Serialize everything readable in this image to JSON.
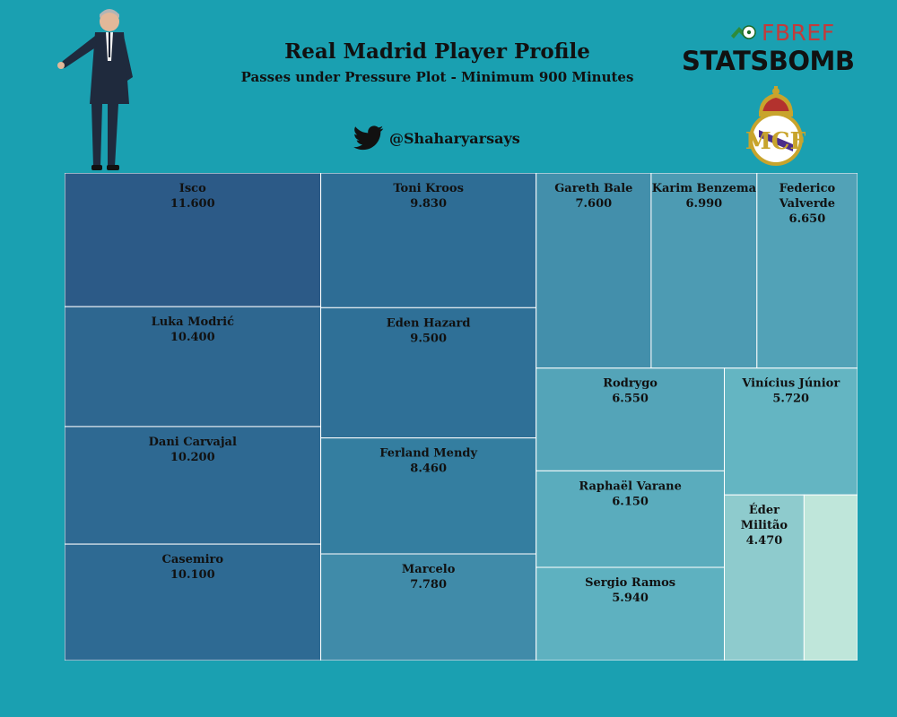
{
  "header": {
    "title": "Real Madrid Player Profile",
    "subtitle": "Passes under Pressure Plot - Minimum 900 Minutes",
    "twitter_handle": "@Shaharyarsays",
    "fbref_logo_text": "FBREF",
    "statsbomb_logo_text": "STATSBOMB"
  },
  "icons": {
    "twitter": "twitter-bird-icon",
    "fbref": "fbref-logo",
    "statsbomb": "statsbomb-logo",
    "crest": "real-madrid-crest",
    "coach": "coach-photo"
  },
  "colors": {
    "background": "#1aa0b1",
    "scale_dark": "#2c5a87",
    "scale_light": "#bfe6da"
  },
  "chart_data": {
    "type": "treemap",
    "items": [
      {
        "name": "Isco",
        "value": 11.6,
        "label": "11.600"
      },
      {
        "name": "Luka Modrić",
        "value": 10.4,
        "label": "10.400"
      },
      {
        "name": "Dani Carvajal",
        "value": 10.2,
        "label": "10.200"
      },
      {
        "name": "Casemiro",
        "value": 10.1,
        "label": "10.100"
      },
      {
        "name": "Toni Kroos",
        "value": 9.83,
        "label": "9.830"
      },
      {
        "name": "Eden Hazard",
        "value": 9.5,
        "label": "9.500"
      },
      {
        "name": "Ferland Mendy",
        "value": 8.46,
        "label": "8.460"
      },
      {
        "name": "Marcelo",
        "value": 7.78,
        "label": "7.780"
      },
      {
        "name": "Gareth Bale",
        "value": 7.6,
        "label": "7.600"
      },
      {
        "name": "Karim Benzema",
        "value": 6.99,
        "label": "6.990"
      },
      {
        "name": "Federico Valverde",
        "value": 6.65,
        "label": "6.650"
      },
      {
        "name": "Rodrygo",
        "value": 6.55,
        "label": "6.550"
      },
      {
        "name": "Vinícius Júnior",
        "value": 5.72,
        "label": "5.720"
      },
      {
        "name": "Raphaël Varane",
        "value": 6.15,
        "label": "6.150"
      },
      {
        "name": "Sergio Ramos",
        "value": 5.94,
        "label": "5.940"
      },
      {
        "name": "Éder Militão",
        "value": 4.47,
        "label": "4.470"
      },
      {
        "name": "",
        "value": 3.0,
        "label": ""
      }
    ]
  }
}
